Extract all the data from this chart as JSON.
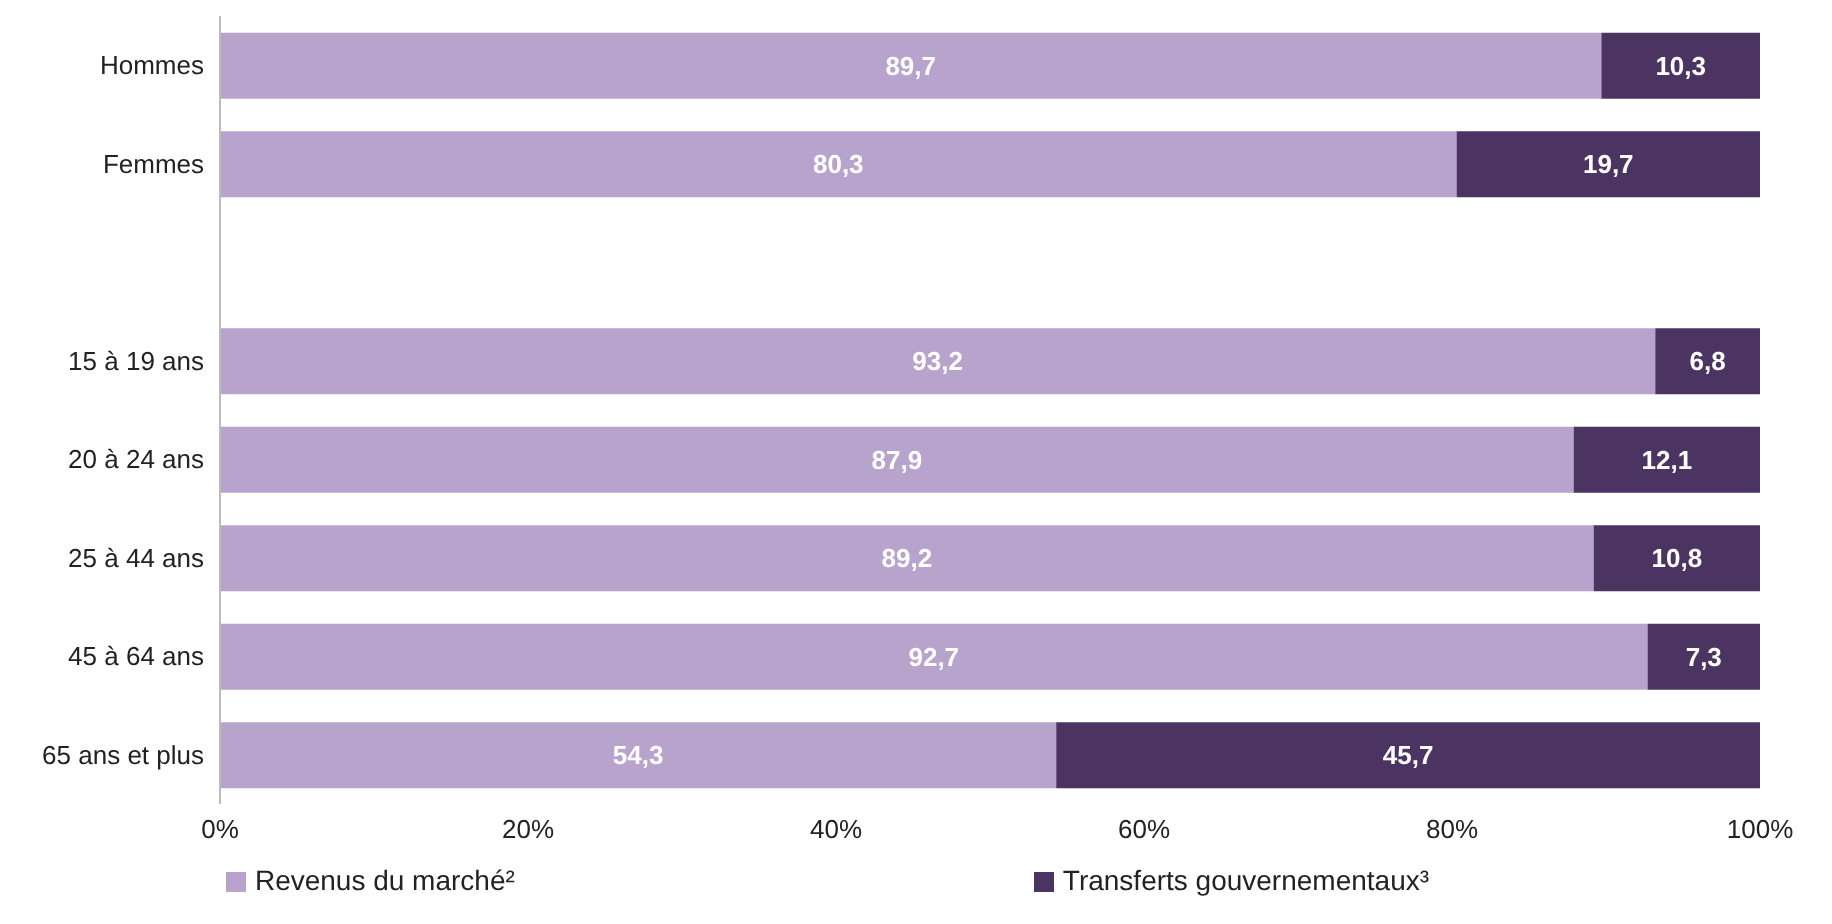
{
  "chart_data": {
    "type": "bar",
    "orientation": "horizontal",
    "stacked": true,
    "categories": [
      "Hommes",
      "Femmes",
      null,
      "15 à 19 ans",
      "20 à 24 ans",
      "25 à 44 ans",
      "45 à 64 ans",
      "65 ans et plus"
    ],
    "series": [
      {
        "name": "Revenus du marché²",
        "color": "#b8a3cc",
        "values": [
          89.7,
          80.3,
          null,
          93.2,
          87.9,
          89.2,
          92.7,
          54.3
        ],
        "value_labels": [
          "89,7",
          "80,3",
          null,
          "93,2",
          "87,9",
          "89,2",
          "92,7",
          "54,3"
        ]
      },
      {
        "name": "Transferts gouvernementaux³",
        "color": "#4b3462",
        "values": [
          10.3,
          19.7,
          null,
          6.8,
          12.1,
          10.8,
          7.3,
          45.7
        ],
        "value_labels": [
          "10,3",
          "19,7",
          null,
          "6,8",
          "12,1",
          "10,8",
          "7,3",
          "45,7"
        ]
      }
    ],
    "xlim": [
      0,
      100
    ],
    "xticks": [
      {
        "value": 0,
        "label": "0%"
      },
      {
        "value": 20,
        "label": "20%"
      },
      {
        "value": 40,
        "label": "40%"
      },
      {
        "value": 60,
        "label": "60%"
      },
      {
        "value": 80,
        "label": "80%"
      },
      {
        "value": 100,
        "label": "100%"
      }
    ],
    "grid": false,
    "legend": "bottom"
  }
}
